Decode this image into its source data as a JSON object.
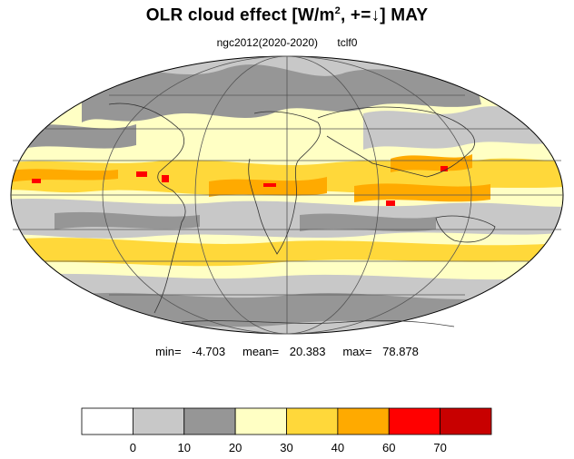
{
  "title": {
    "prefix": "OLR cloud effect [W/m",
    "superscript": "2",
    "suffix": ", +=↓]  MAY"
  },
  "subtitle": {
    "experiment": "ngc2012(2020-2020)",
    "variable": "tclf0"
  },
  "stats": {
    "min_label": "min=",
    "min_value": "-4.703",
    "mean_label": "mean=",
    "mean_value": "20.383",
    "max_label": "max=",
    "max_value": "78.878"
  },
  "colorbar": {
    "colors": [
      "#ffffff",
      "#c8c8c8",
      "#969696",
      "#ffffc4",
      "#ffd83a",
      "#ffaa00",
      "#ff0000",
      "#c80000"
    ],
    "tick_labels": [
      "0",
      "10",
      "20",
      "30",
      "40",
      "60",
      "70"
    ]
  },
  "map_legend_colors": {
    "land_line": "#333333",
    "grid_line": "#555555"
  }
}
